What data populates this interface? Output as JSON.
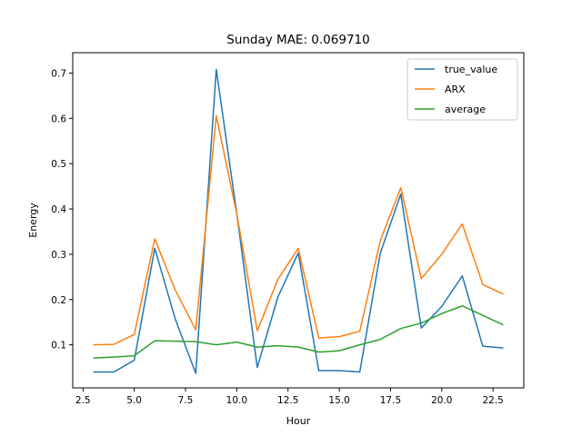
{
  "chart_data": {
    "type": "line",
    "title": "Sunday MAE: 0.069710",
    "xlabel": "Hour",
    "ylabel": "Energy",
    "xlim": [
      2.0,
      24.0
    ],
    "ylim": [
      0.005,
      0.745
    ],
    "xticks": [
      2.5,
      5.0,
      7.5,
      10.0,
      12.5,
      15.0,
      17.5,
      20.0,
      22.5
    ],
    "xtick_labels": [
      "2.5",
      "5.0",
      "7.5",
      "10.0",
      "12.5",
      "15.0",
      "17.5",
      "20.0",
      "22.5"
    ],
    "yticks": [
      0.1,
      0.2,
      0.3,
      0.4,
      0.5,
      0.6,
      0.7
    ],
    "ytick_labels": [
      "0.1",
      "0.2",
      "0.3",
      "0.4",
      "0.5",
      "0.6",
      "0.7"
    ],
    "grid": false,
    "legend_position": "top-right",
    "x": [
      3,
      4,
      5,
      6,
      7,
      8,
      9,
      10,
      11,
      12,
      13,
      14,
      15,
      16,
      17,
      18,
      19,
      20,
      21,
      22,
      23
    ],
    "series": [
      {
        "name": "true_value",
        "color": "#1f77b4",
        "values": [
          0.04,
          0.04,
          0.066,
          0.313,
          0.157,
          0.037,
          0.708,
          0.39,
          0.05,
          0.205,
          0.303,
          0.043,
          0.043,
          0.04,
          0.302,
          0.433,
          0.137,
          0.185,
          0.252,
          0.097,
          0.093
        ]
      },
      {
        "name": "ARX",
        "color": "#ff7f0e",
        "values": [
          0.1,
          0.101,
          0.123,
          0.334,
          0.221,
          0.133,
          0.606,
          0.389,
          0.131,
          0.244,
          0.313,
          0.115,
          0.118,
          0.13,
          0.33,
          0.447,
          0.246,
          0.3,
          0.367,
          0.233,
          0.212
        ]
      },
      {
        "name": "average",
        "color": "#2ca02c",
        "values": [
          0.071,
          0.073,
          0.076,
          0.109,
          0.108,
          0.107,
          0.1,
          0.106,
          0.095,
          0.098,
          0.095,
          0.084,
          0.087,
          0.1,
          0.112,
          0.136,
          0.148,
          0.169,
          0.186,
          0.165,
          0.144
        ]
      }
    ]
  }
}
